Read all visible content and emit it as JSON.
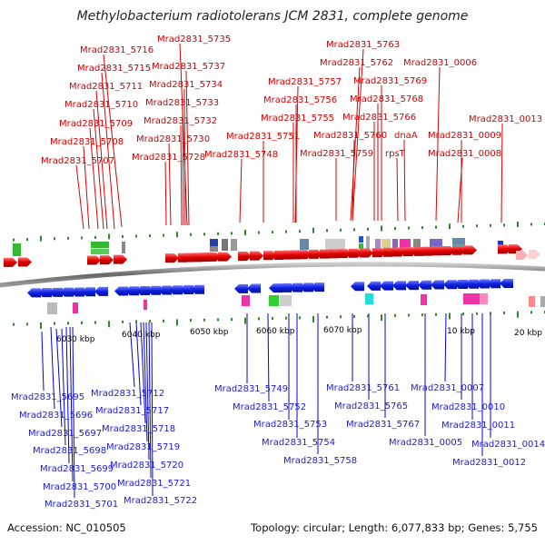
{
  "title": "Methylobacterium radiotolerans JCM 2831, complete genome",
  "footer": {
    "accession": "Accession: NC_010505",
    "topology": "Topology: circular; Length: 6,077,833 bp; Genes: 5,755"
  },
  "scale_labels": [
    "6030 kbp",
    "6040 kbp",
    "6050 kbp",
    "6060 kbp",
    "6070 kbp",
    "10 kbp",
    "20 kbp"
  ],
  "top_genes": [
    "Mrad2831_5735",
    "Mrad2831_5716",
    "Mrad2831_5737",
    "Mrad2831_5715",
    "Mrad2831_5734",
    "Mrad2831_5711",
    "Mrad2831_5733",
    "Mrad2831_5710",
    "Mrad2831_5732",
    "Mrad2831_5709",
    "Mrad2831_5730",
    "Mrad2831_5708",
    "Mrad2831_5728",
    "Mrad2831_5707",
    "Mrad2831_5748",
    "Mrad2831_5751",
    "Mrad2831_5757",
    "Mrad2831_5756",
    "Mrad2831_5755",
    "Mrad2831_5763",
    "Mrad2831_5762",
    "Mrad2831_5769",
    "Mrad2831_5768",
    "Mrad2831_5766",
    "Mrad2831_5760",
    "Mrad2831_5759",
    "rpsT",
    "dnaA",
    "Mrad2831_0006",
    "Mrad2831_0013",
    "Mrad2831_0009",
    "Mrad2831_0008"
  ],
  "bottom_genes": [
    "Mrad2831_5695",
    "Mrad2831_5696",
    "Mrad2831_5697",
    "Mrad2831_5698",
    "Mrad2831_5699",
    "Mrad2831_5700",
    "Mrad2831_5701",
    "Mrad2831_5712",
    "Mrad2831_5717",
    "Mrad2831_5718",
    "Mrad2831_5719",
    "Mrad2831_5720",
    "Mrad2831_5721",
    "Mrad2831_5722",
    "Mrad2831_5749",
    "Mrad2831_5752",
    "Mrad2831_5753",
    "Mrad2831_5754",
    "Mrad2831_5758",
    "Mrad2831_5761",
    "Mrad2831_5765",
    "Mrad2831_5767",
    "Mrad2831_0005",
    "Mrad2831_0007",
    "Mrad2831_0010",
    "Mrad2831_0011",
    "Mrad2831_0014",
    "Mrad2831_0012"
  ],
  "colors": {
    "forward": "#ee1111",
    "reverse": "#1122ee",
    "backbone": "#777777",
    "tick": "#2a8a2a"
  }
}
